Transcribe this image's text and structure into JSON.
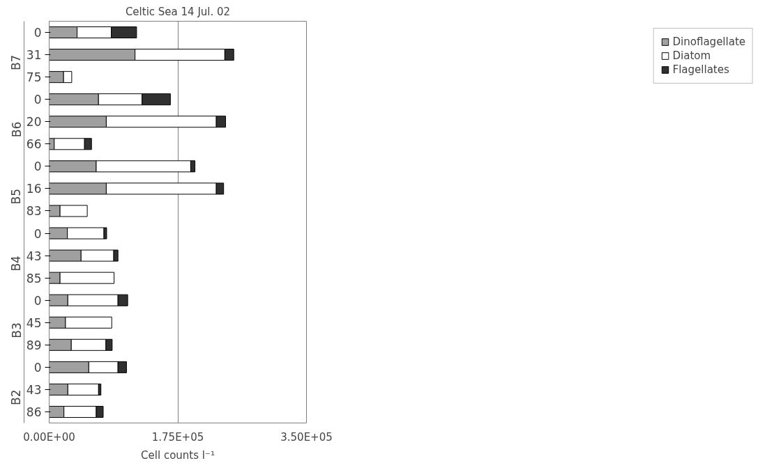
{
  "chart_data": {
    "type": "bar",
    "orientation": "horizontal",
    "stacked": true,
    "title": "Celtic Sea 14 Jul. 02",
    "xlabel": "Cell counts l⁻¹",
    "categories": [
      "0",
      "31",
      "75",
      "0",
      "20",
      "66",
      "0",
      "16",
      "83",
      "0",
      "43",
      "85",
      "0",
      "45",
      "89",
      "0",
      "43",
      "86"
    ],
    "annotations": [
      "B7",
      "B6",
      "B5",
      "B4",
      "B3",
      "B2"
    ],
    "series": [
      {
        "name": "Dinoflagellate",
        "color": "#a0a0a0",
        "values": [
          38000,
          116800,
          19600,
          67100,
          77700,
          6900,
          64000,
          77700,
          14800,
          24800,
          43400,
          14800,
          25400,
          22200,
          30100,
          53900,
          25400,
          20100
        ]
      },
      {
        "name": "Diatom",
        "color": "#ffffff",
        "values": [
          46500,
          122100,
          11100,
          59200,
          149600,
          41200,
          128500,
          149600,
          37000,
          49700,
          44400,
          73500,
          68200,
          62900,
          47100,
          39700,
          41800,
          43900
        ]
      },
      {
        "name": "Flagellates",
        "color": "#303030",
        "values": [
          34400,
          12200,
          null,
          38600,
          12700,
          9500,
          5800,
          10000,
          null,
          3700,
          5800,
          null,
          13200,
          null,
          8500,
          11600,
          3200,
          9500
        ]
      }
    ],
    "xlim": [
      0,
      350000
    ],
    "xticks": [
      {
        "value": 0,
        "label": "0.00E+00"
      },
      {
        "value": 175000,
        "label": "1.75E+05"
      },
      {
        "value": 350000,
        "label": "3.50E+05"
      }
    ],
    "grid": "x",
    "legend": "right"
  }
}
